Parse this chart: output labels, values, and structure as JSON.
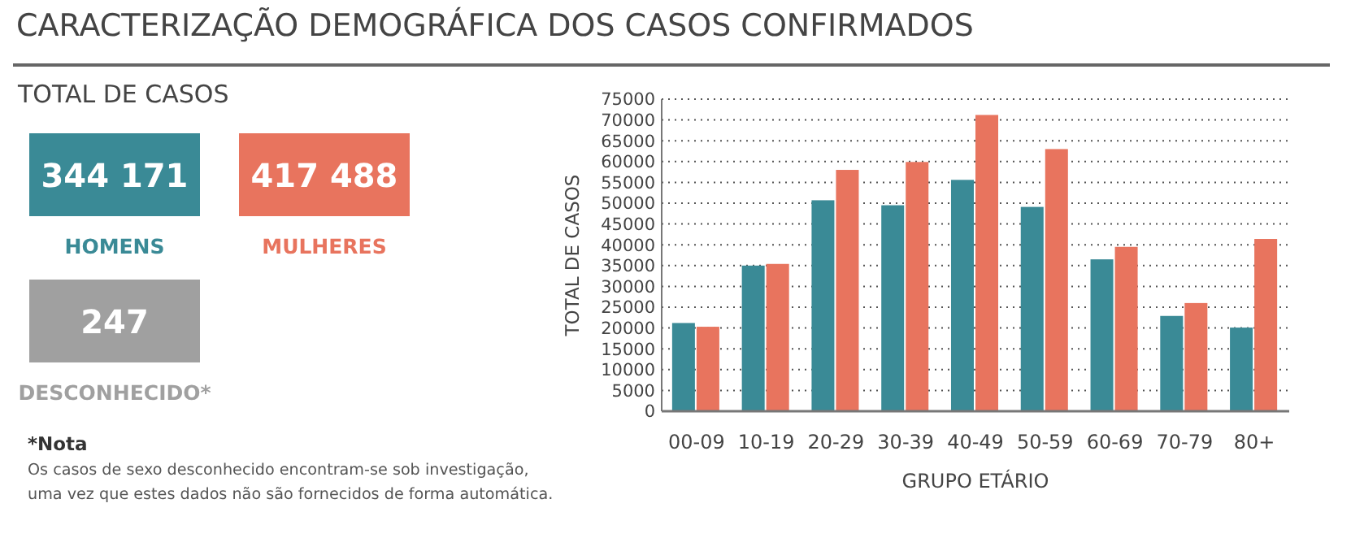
{
  "chart_data": [
    {
      "type": "other",
      "title": "CARACTERIZAÇÃO DEMOGRÁFICA DOS CASOS CONFIRMADOS",
      "subtitle": "TOTAL DE CASOS",
      "categories": [
        "HOMENS",
        "MULHERES",
        "DESCONHECIDO*"
      ],
      "value_labels": [
        "344 171",
        "417 488",
        "247"
      ],
      "colors": [
        "#3a8a96",
        "#e8745e",
        "#a0a0a0"
      ],
      "annotations": [
        "*Nota",
        "Os casos de sexo desconhecido encontram-se sob investigação, uma vez que estes dados não são fornecidos de forma automática."
      ]
    },
    {
      "type": "bar",
      "xlabel": "GRUPO ETÁRIO",
      "ylabel": "TOTAL DE CASOS",
      "categories": [
        "00-09",
        "10-19",
        "20-29",
        "30-39",
        "40-49",
        "50-59",
        "60-69",
        "70-79",
        "80+"
      ],
      "series": [
        {
          "color": "#3a8a96",
          "values": [
            21200,
            35000,
            50700,
            49500,
            55600,
            49100,
            36500,
            22900,
            20100
          ]
        },
        {
          "color": "#e8745e",
          "values": [
            20300,
            35400,
            58000,
            59900,
            71200,
            63000,
            39500,
            26000,
            41400
          ]
        }
      ],
      "ylim": [
        0,
        75000
      ],
      "yticks": [
        0,
        5000,
        10000,
        15000,
        20000,
        25000,
        30000,
        35000,
        40000,
        45000,
        50000,
        55000,
        60000,
        65000,
        70000,
        75000
      ],
      "grid": "y"
    }
  ]
}
